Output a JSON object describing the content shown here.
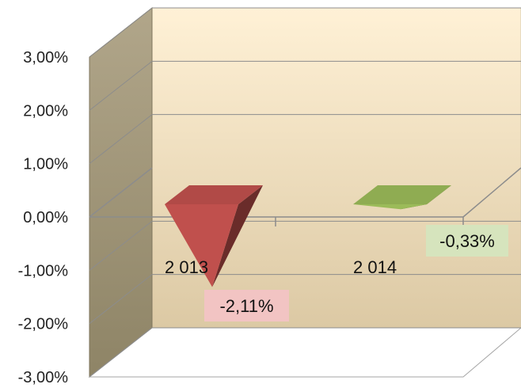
{
  "chart_data": {
    "type": "bar",
    "style": "3d-pyramid",
    "categories": [
      "2 013",
      "2 014"
    ],
    "series": [
      {
        "values": [
          -2.11,
          -0.33
        ],
        "data_labels": [
          "-2,11%",
          "-0,33%"
        ]
      }
    ],
    "bar_colors": [
      "#c0504d",
      "#9bbb59"
    ],
    "label_bg_colors": [
      "#f2c4c3",
      "#d6e4bd"
    ],
    "ylim": [
      -3,
      3
    ],
    "yticks": [
      -3,
      -2,
      -1,
      0,
      1,
      2,
      3
    ],
    "ytick_labels": [
      "-3,00%",
      "-2,00%",
      "-1,00%",
      "0,00%",
      "1,00%",
      "2,00%",
      "3,00%"
    ],
    "grid": true,
    "legend": "none",
    "title": "",
    "xlabel": "",
    "ylabel": ""
  }
}
